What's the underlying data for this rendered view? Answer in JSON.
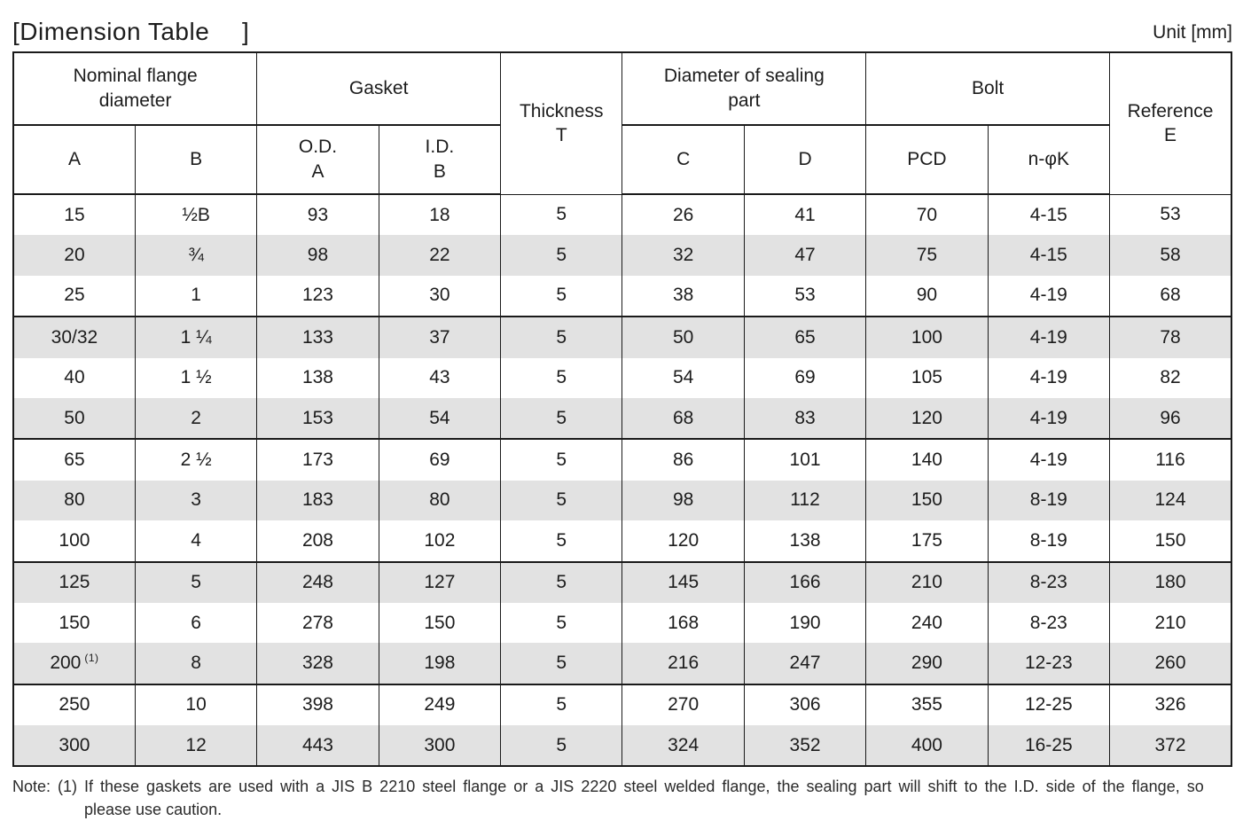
{
  "page": {
    "title": "[Dimension Table　 ]",
    "unit_label": "Unit [mm]"
  },
  "table": {
    "header": {
      "nominal_flange_diameter": "Nominal flange\ndiameter",
      "gasket": "Gasket",
      "thickness": "Thickness\nT",
      "sealing_part": "Diameter of sealing\npart",
      "bolt": "Bolt",
      "reference": "Reference\nE",
      "col_a": "A",
      "col_b": "B",
      "col_od": "O.D.\nA",
      "col_id": "I.D.\nB",
      "col_c": "C",
      "col_d": "D",
      "col_pcd": "PCD",
      "col_nk": "n-φK"
    },
    "rows": [
      {
        "a": "15",
        "b": "½B",
        "od": "93",
        "id": "18",
        "t": "5",
        "c": "26",
        "d": "41",
        "pcd": "70",
        "nk": "4-15",
        "e": "53",
        "group_end": false
      },
      {
        "a": "20",
        "b": "¾",
        "od": "98",
        "id": "22",
        "t": "5",
        "c": "32",
        "d": "47",
        "pcd": "75",
        "nk": "4-15",
        "e": "58",
        "group_end": false
      },
      {
        "a": "25",
        "b": "1",
        "od": "123",
        "id": "30",
        "t": "5",
        "c": "38",
        "d": "53",
        "pcd": "90",
        "nk": "4-19",
        "e": "68",
        "group_end": true
      },
      {
        "a": "30/32",
        "b": "1 ¼",
        "od": "133",
        "id": "37",
        "t": "5",
        "c": "50",
        "d": "65",
        "pcd": "100",
        "nk": "4-19",
        "e": "78",
        "group_end": false
      },
      {
        "a": "40",
        "b": "1 ½",
        "od": "138",
        "id": "43",
        "t": "5",
        "c": "54",
        "d": "69",
        "pcd": "105",
        "nk": "4-19",
        "e": "82",
        "group_end": false
      },
      {
        "a": "50",
        "b": "2",
        "od": "153",
        "id": "54",
        "t": "5",
        "c": "68",
        "d": "83",
        "pcd": "120",
        "nk": "4-19",
        "e": "96",
        "group_end": true
      },
      {
        "a": "65",
        "b": "2 ½",
        "od": "173",
        "id": "69",
        "t": "5",
        "c": "86",
        "d": "101",
        "pcd": "140",
        "nk": "4-19",
        "e": "116",
        "group_end": false
      },
      {
        "a": "80",
        "b": "3",
        "od": "183",
        "id": "80",
        "t": "5",
        "c": "98",
        "d": "112",
        "pcd": "150",
        "nk": "8-19",
        "e": "124",
        "group_end": false
      },
      {
        "a": "100",
        "b": "4",
        "od": "208",
        "id": "102",
        "t": "5",
        "c": "120",
        "d": "138",
        "pcd": "175",
        "nk": "8-19",
        "e": "150",
        "group_end": true
      },
      {
        "a": "125",
        "b": "5",
        "od": "248",
        "id": "127",
        "t": "5",
        "c": "145",
        "d": "166",
        "pcd": "210",
        "nk": "8-23",
        "e": "180",
        "group_end": false
      },
      {
        "a": "150",
        "b": "6",
        "od": "278",
        "id": "150",
        "t": "5",
        "c": "168",
        "d": "190",
        "pcd": "240",
        "nk": "8-23",
        "e": "210",
        "group_end": false
      },
      {
        "a": "200",
        "a_note": "(1)",
        "b": "8",
        "od": "328",
        "id": "198",
        "t": "5",
        "c": "216",
        "d": "247",
        "pcd": "290",
        "nk": "12-23",
        "e": "260",
        "group_end": true
      },
      {
        "a": "250",
        "b": "10",
        "od": "398",
        "id": "249",
        "t": "5",
        "c": "270",
        "d": "306",
        "pcd": "355",
        "nk": "12-25",
        "e": "326",
        "group_end": false
      },
      {
        "a": "300",
        "b": "12",
        "od": "443",
        "id": "300",
        "t": "5",
        "c": "324",
        "d": "352",
        "pcd": "400",
        "nk": "16-25",
        "e": "372",
        "group_end": false
      }
    ]
  },
  "note": {
    "line1": "Note: (1) If these gaskets are used with a JIS B 2210 steel flange or a JIS 2220 steel welded flange, the sealing part will shift to the I.D. side of the flange, so",
    "line2": "please use caution."
  },
  "colors": {
    "row_shade": "#e2e2e2",
    "border": "#1a1a1a",
    "text": "#1c1c1c"
  }
}
